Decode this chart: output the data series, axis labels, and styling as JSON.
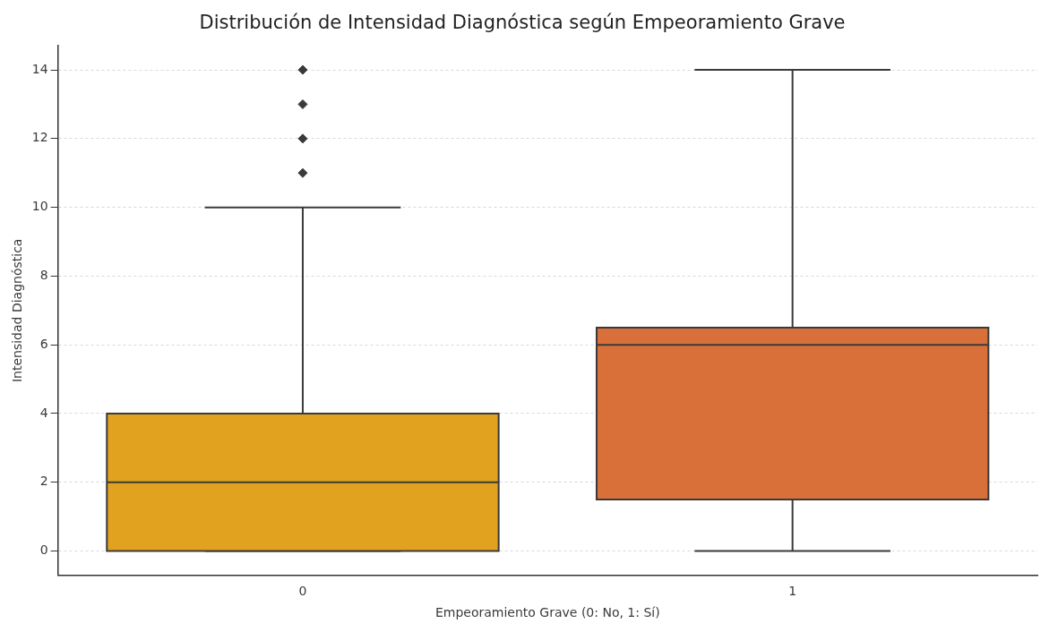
{
  "chart_data": {
    "type": "box",
    "title": "Distribución de Intensidad Diagnóstica según Empeoramiento Grave",
    "xlabel": "Empeoramiento Grave (0: No, 1: Sí)",
    "ylabel": "Intensidad Diagnóstica",
    "categories": [
      "0",
      "1"
    ],
    "boxes": [
      {
        "low": 0,
        "q1": 0,
        "median": 2,
        "q3": 4,
        "high": 10,
        "outliers": [
          11,
          12,
          13,
          14
        ]
      },
      {
        "low": 0,
        "q1": 1.5,
        "median": 6,
        "q3": 6.5,
        "high": 14
      }
    ],
    "colors": [
      "#e0a21f",
      "#d9703a"
    ],
    "ylim": [
      -0.7,
      14.7
    ],
    "yticks": [
      0,
      2,
      4,
      6,
      8,
      10,
      12,
      14
    ],
    "grid": "y",
    "legend": false
  }
}
